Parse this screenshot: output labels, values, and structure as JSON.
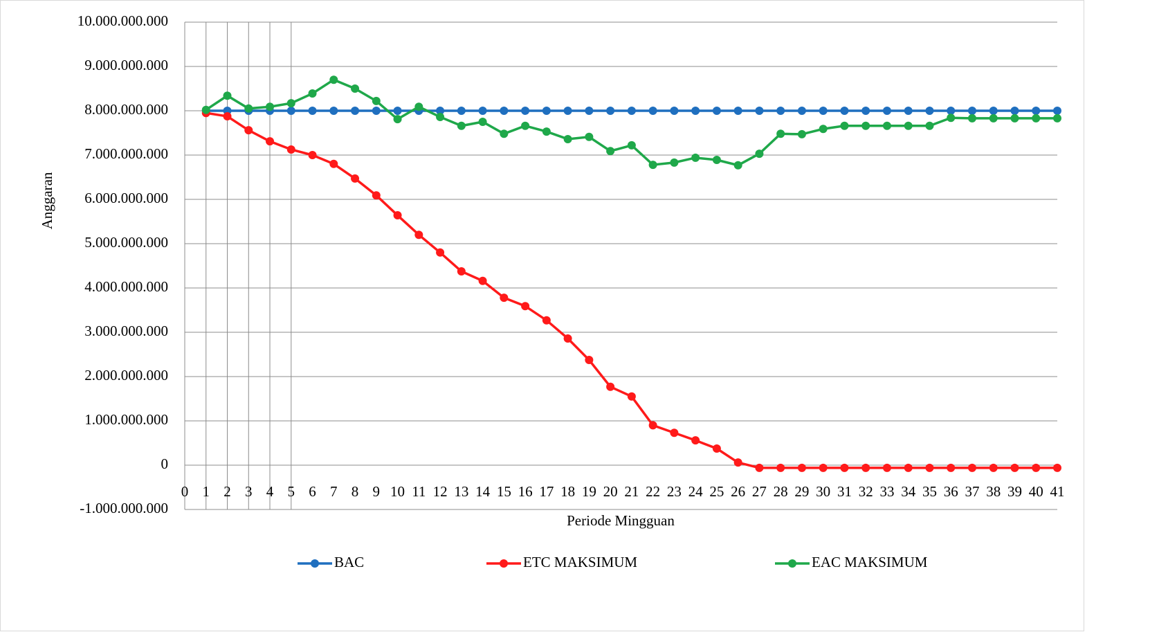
{
  "chart_data": {
    "type": "line",
    "xlabel": "Periode Mingguan",
    "ylabel": "Anggaran",
    "x": [
      1,
      2,
      3,
      4,
      5,
      6,
      7,
      8,
      9,
      10,
      11,
      12,
      13,
      14,
      15,
      16,
      17,
      18,
      19,
      20,
      21,
      22,
      23,
      24,
      25,
      26,
      27,
      28,
      29,
      30,
      31,
      32,
      33,
      34,
      35,
      36,
      37,
      38,
      39,
      40,
      41
    ],
    "series": [
      {
        "name": "BAC",
        "color": "#1f6fbf",
        "values": [
          8000000000,
          8000000000,
          8000000000,
          8000000000,
          8000000000,
          8000000000,
          8000000000,
          8000000000,
          8000000000,
          8000000000,
          8000000000,
          8000000000,
          8000000000,
          8000000000,
          8000000000,
          8000000000,
          8000000000,
          8000000000,
          8000000000,
          8000000000,
          8000000000,
          8000000000,
          8000000000,
          8000000000,
          8000000000,
          8000000000,
          8000000000,
          8000000000,
          8000000000,
          8000000000,
          8000000000,
          8000000000,
          8000000000,
          8000000000,
          8000000000,
          8000000000,
          8000000000,
          8000000000,
          8000000000,
          8000000000,
          8000000000
        ]
      },
      {
        "name": "ETC MAKSIMUM",
        "color": "#ff1a1a",
        "values": [
          7950000000,
          7875000000,
          7560000000,
          7310000000,
          7125000000,
          7000000000,
          6800000000,
          6470000000,
          6090000000,
          5640000000,
          5200000000,
          4800000000,
          4375000000,
          4160000000,
          3780000000,
          3590000000,
          3270000000,
          2860000000,
          2375000000,
          1770000000,
          1550000000,
          900000000,
          730000000,
          560000000,
          375000000,
          60000000,
          -60000000,
          -60000000,
          -60000000,
          -60000000,
          -60000000,
          -60000000,
          -60000000,
          -60000000,
          -60000000,
          -60000000,
          -60000000,
          -60000000,
          -60000000,
          -60000000,
          -60000000
        ]
      },
      {
        "name": "EAC MAKSIMUM",
        "color": "#1fa84a",
        "values": [
          8020000000,
          8340000000,
          8050000000,
          8090000000,
          8170000000,
          8390000000,
          8700000000,
          8500000000,
          8220000000,
          7810000000,
          8090000000,
          7860000000,
          7660000000,
          7750000000,
          7480000000,
          7660000000,
          7530000000,
          7360000000,
          7410000000,
          7090000000,
          7220000000,
          6780000000,
          6830000000,
          6940000000,
          6890000000,
          6770000000,
          7030000000,
          7480000000,
          7470000000,
          7590000000,
          7660000000,
          7660000000,
          7660000000,
          7660000000,
          7660000000,
          7840000000,
          7830000000,
          7830000000,
          7830000000,
          7830000000,
          7830000000
        ]
      }
    ],
    "xlim": [
      0,
      41
    ],
    "xticks": [
      0,
      1,
      2,
      3,
      4,
      5,
      6,
      7,
      8,
      9,
      10,
      11,
      12,
      13,
      14,
      15,
      16,
      17,
      18,
      19,
      20,
      21,
      22,
      23,
      24,
      25,
      26,
      27,
      28,
      29,
      30,
      31,
      32,
      33,
      34,
      35,
      36,
      37,
      38,
      39,
      40,
      41
    ],
    "xgrid": [
      1,
      2,
      3,
      4,
      5
    ],
    "ylim": [
      -1000000000,
      10000000000
    ],
    "yticks": [
      {
        "value": -1000000000,
        "label": "-1.000.000.000"
      },
      0,
      {
        "value": 1000000000,
        "label": "1.000.000.000"
      },
      {
        "value": 2000000000,
        "label": "2.000.000.000"
      },
      {
        "value": 3000000000,
        "label": "3.000.000.000"
      },
      {
        "value": 4000000000,
        "label": "4.000.000.000"
      },
      {
        "value": 5000000000,
        "label": "5.000.000.000"
      },
      {
        "value": 6000000000,
        "label": "6.000.000.000"
      },
      {
        "value": 7000000000,
        "label": "7.000.000.000"
      },
      {
        "value": 8000000000,
        "label": "8.000.000.000"
      },
      {
        "value": 9000000000,
        "label": "9.000.000.000"
      },
      {
        "value": 10000000000,
        "label": "10.000.000.000"
      }
    ],
    "grid": true,
    "legend": "bottom"
  }
}
